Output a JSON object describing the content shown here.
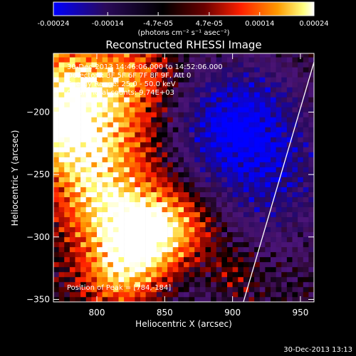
{
  "chart_data": {
    "type": "heatmap",
    "title": "Reconstructed RHESSI Image",
    "xlabel": "Heliocentric X (arcsec)",
    "ylabel": "Heliocentric Y (arcsec)",
    "xlim": [
      768,
      960
    ],
    "ylim": [
      -352,
      -153
    ],
    "xticks": [
      800,
      850,
      900,
      950
    ],
    "yticks": [
      -200,
      -250,
      -300,
      -350
    ],
    "colorbar": {
      "range": [
        -0.00024,
        0.00024
      ],
      "tick_values": [
        -0.00024,
        -0.00014,
        -4.7e-05,
        4.7e-05,
        0.00014,
        0.00024
      ],
      "tick_labels": [
        "-0.00024",
        "-0.00014",
        "-4.7e-05",
        "4.7e-05",
        "0.00014",
        "0.00024"
      ],
      "unit_label": "(photons cm⁻² s⁻¹ asec⁻²)",
      "colors": [
        "#0000ff",
        "#2a0a5a",
        "#000000",
        "#6a0000",
        "#ff2000",
        "#ff9a00",
        "#ffff80",
        "#ffffff"
      ]
    },
    "annotations": [
      "30-Dec-2013 14:46:06.000 to 14:52:06.000",
      "Detectors: 3F 5F 6F 7F 8F 9F, Att 0",
      "Energy Range: 25.0 - 50.0 keV",
      "Clean.   Total counts: 9.74E+03"
    ],
    "peak": {
      "label": "Position of Peak =",
      "x": 784,
      "y": -184,
      "text": "[784,-184]"
    },
    "limb_line": {
      "x1": 960,
      "y1": -160,
      "x2": 908,
      "y2": -352
    }
  },
  "footer": {
    "timestamp": "30-Dec-2013 13:13"
  }
}
